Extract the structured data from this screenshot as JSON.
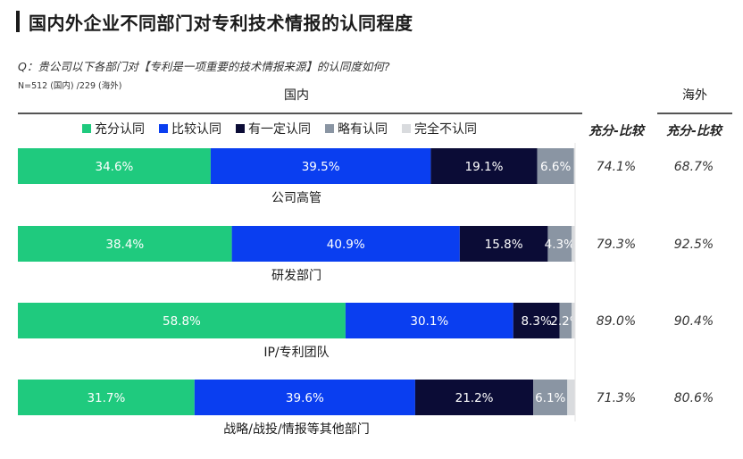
{
  "chart_data": {
    "type": "bar",
    "orientation": "horizontal",
    "stacked": true,
    "title": "国内外企业不同部门对专利技术情报的认同程度",
    "question": "Q：贵公司以下各部门对【专利是一项重要的技术情报来源】的认同度如何?",
    "sample_note": "N=512 (国内) /229 (海外)",
    "group_labels": {
      "domestic": "国内",
      "overseas": "海外"
    },
    "metric_header": "充分-比较",
    "categories": [
      "公司高管",
      "研发部门",
      "IP/专利团队",
      "战略/战投/情报等其他部门"
    ],
    "series": [
      {
        "name": "充分认同",
        "color": "#1fca7e",
        "values": [
          34.6,
          38.4,
          58.8,
          31.7
        ],
        "labels": [
          "34.6%",
          "38.4%",
          "58.8%",
          "31.7%"
        ]
      },
      {
        "name": "比较认同",
        "color": "#0a3ef0",
        "values": [
          39.5,
          40.9,
          30.1,
          39.6
        ],
        "labels": [
          "39.5%",
          "40.9%",
          "30.1%",
          "39.6%"
        ]
      },
      {
        "name": "有一定认同",
        "color": "#0b0c36",
        "values": [
          19.1,
          15.8,
          8.3,
          21.2
        ],
        "labels": [
          "19.1%",
          "15.8%",
          "8.3%",
          "21.2%"
        ]
      },
      {
        "name": "略有认同",
        "color": "#8a95a3",
        "values": [
          6.6,
          4.3,
          2.2,
          6.1
        ],
        "labels": [
          "6.6%",
          "4.3%",
          "2.2%",
          "6.1%"
        ]
      },
      {
        "name": "完全不认同",
        "color": "#d9dbde",
        "values": [
          0.2,
          0.6,
          0.6,
          1.4
        ],
        "labels": [
          "",
          "",
          "",
          ""
        ]
      }
    ],
    "domestic_metric": [
      "74.1%",
      "79.3%",
      "89.0%",
      "71.3%"
    ],
    "overseas_metric": [
      "68.7%",
      "92.5%",
      "90.4%",
      "80.6%"
    ],
    "xlim": [
      0,
      100
    ],
    "grid": false,
    "legend_position": "top"
  }
}
